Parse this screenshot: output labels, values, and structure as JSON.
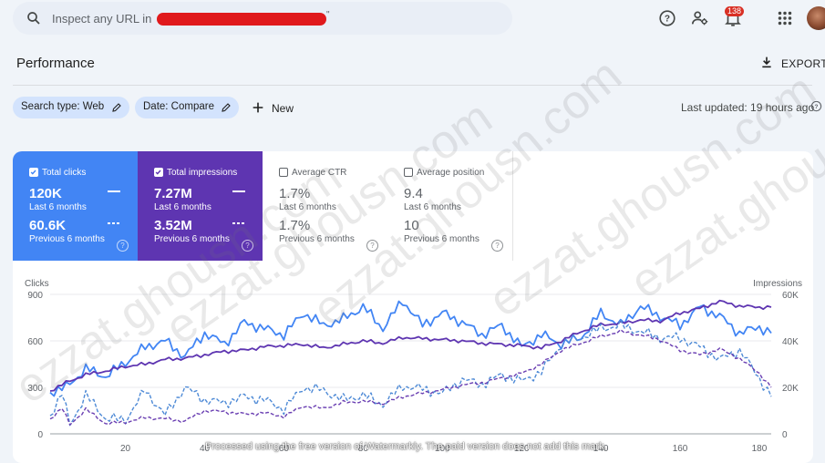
{
  "search": {
    "placeholder": "Inspect any URL in",
    "suffix": "\""
  },
  "header": {
    "notifications_count": "138"
  },
  "page": {
    "title": "Performance",
    "export_label": "EXPORT"
  },
  "filters": {
    "search_type": "Search type: Web",
    "date": "Date: Compare",
    "new_label": "New",
    "last_updated": "Last updated: 19 hours ago"
  },
  "metrics": {
    "clicks": {
      "label": "Total clicks",
      "current": "120K",
      "current_period": "Last 6 months",
      "previous": "60.6K",
      "previous_period": "Previous 6 months",
      "checked": true
    },
    "impressions": {
      "label": "Total impressions",
      "current": "7.27M",
      "current_period": "Last 6 months",
      "previous": "3.52M",
      "previous_period": "Previous 6 months",
      "checked": true
    },
    "ctr": {
      "label": "Average CTR",
      "current": "1.7%",
      "current_period": "Last 6 months",
      "previous": "1.7%",
      "previous_period": "Previous 6 months",
      "checked": false
    },
    "position": {
      "label": "Average position",
      "current": "9.4",
      "current_period": "Last 6 months",
      "previous": "10",
      "previous_period": "Previous 6 months",
      "checked": false
    }
  },
  "colors": {
    "clicks": "#4285f4",
    "impressions": "#5e35b1",
    "clicks_prev": "#4e8ad6",
    "impressions_prev": "#6a3fb2"
  },
  "watermarks": [
    "ezzat.ghousn.com",
    "ezzat.ghousn.com",
    "ezzat.ghousn.com",
    "ezzat.ghousn.com",
    "ezzat.ghousn.com"
  ],
  "footer_note": "Processed using the free version of Watermarkly. The paid version does not add this mark.",
  "chart_data": {
    "type": "line",
    "ylabel_left": "Clicks",
    "ylabel_right": "Impressions",
    "y_left_ticks": [
      "0",
      "300",
      "600",
      "900"
    ],
    "y_right_ticks": [
      "0",
      "20K",
      "40K",
      "60K"
    ],
    "ylim_left": [
      0,
      900
    ],
    "ylim_right": [
      0,
      60000
    ],
    "x_ticks": [
      "20",
      "40",
      "60",
      "80",
      "100",
      "120",
      "140",
      "160",
      "180"
    ],
    "x_tick_values": [
      20,
      40,
      60,
      80,
      100,
      120,
      140,
      160,
      180
    ],
    "xlim": [
      1,
      183
    ],
    "series": [
      {
        "name": "Total clicks",
        "period": "Last 6 months",
        "axis": "left",
        "style": "solid",
        "color": "#4285f4",
        "values": [
          [
            1,
            270
          ],
          [
            5,
            300
          ],
          [
            10,
            420
          ],
          [
            15,
            370
          ],
          [
            20,
            460
          ],
          [
            25,
            560
          ],
          [
            30,
            600
          ],
          [
            35,
            500
          ],
          [
            40,
            650
          ],
          [
            45,
            580
          ],
          [
            50,
            720
          ],
          [
            55,
            680
          ],
          [
            60,
            640
          ],
          [
            65,
            780
          ],
          [
            70,
            700
          ],
          [
            75,
            740
          ],
          [
            80,
            820
          ],
          [
            85,
            680
          ],
          [
            90,
            860
          ],
          [
            95,
            700
          ],
          [
            100,
            780
          ],
          [
            105,
            720
          ],
          [
            110,
            640
          ],
          [
            115,
            700
          ],
          [
            120,
            560
          ],
          [
            125,
            640
          ],
          [
            130,
            580
          ],
          [
            135,
            620
          ],
          [
            140,
            780
          ],
          [
            145,
            700
          ],
          [
            150,
            820
          ],
          [
            155,
            760
          ],
          [
            160,
            700
          ],
          [
            165,
            820
          ],
          [
            170,
            760
          ],
          [
            175,
            650
          ],
          [
            180,
            690
          ],
          [
            183,
            650
          ]
        ]
      },
      {
        "name": "Total impressions",
        "period": "Last 6 months",
        "axis": "right",
        "style": "solid",
        "color": "#5e35b1",
        "values": [
          [
            1,
            18500
          ],
          [
            5,
            22000
          ],
          [
            10,
            25500
          ],
          [
            15,
            27000
          ],
          [
            20,
            29000
          ],
          [
            25,
            30000
          ],
          [
            30,
            32000
          ],
          [
            35,
            32500
          ],
          [
            40,
            34000
          ],
          [
            45,
            35500
          ],
          [
            50,
            36000
          ],
          [
            55,
            37500
          ],
          [
            60,
            38000
          ],
          [
            65,
            38500
          ],
          [
            70,
            37000
          ],
          [
            75,
            38500
          ],
          [
            80,
            40000
          ],
          [
            85,
            39000
          ],
          [
            90,
            41500
          ],
          [
            95,
            41000
          ],
          [
            100,
            40500
          ],
          [
            105,
            40000
          ],
          [
            110,
            39000
          ],
          [
            115,
            38500
          ],
          [
            120,
            38000
          ],
          [
            125,
            37000
          ],
          [
            130,
            40000
          ],
          [
            135,
            44000
          ],
          [
            140,
            47000
          ],
          [
            145,
            47500
          ],
          [
            150,
            49000
          ],
          [
            155,
            48500
          ],
          [
            160,
            52000
          ],
          [
            165,
            54000
          ],
          [
            170,
            57000
          ],
          [
            175,
            55000
          ],
          [
            180,
            54500
          ],
          [
            183,
            54500
          ]
        ]
      },
      {
        "name": "Total clicks",
        "period": "Previous 6 months",
        "axis": "left",
        "style": "dashed",
        "color": "#4e8ad6",
        "values": [
          [
            1,
            120
          ],
          [
            4,
            260
          ],
          [
            6,
            60
          ],
          [
            10,
            250
          ],
          [
            15,
            100
          ],
          [
            20,
            90
          ],
          [
            25,
            280
          ],
          [
            30,
            120
          ],
          [
            35,
            300
          ],
          [
            40,
            220
          ],
          [
            45,
            200
          ],
          [
            50,
            240
          ],
          [
            55,
            220
          ],
          [
            60,
            160
          ],
          [
            65,
            300
          ],
          [
            70,
            280
          ],
          [
            75,
            220
          ],
          [
            80,
            250
          ],
          [
            85,
            190
          ],
          [
            90,
            310
          ],
          [
            95,
            290
          ],
          [
            100,
            260
          ],
          [
            105,
            350
          ],
          [
            110,
            320
          ],
          [
            115,
            380
          ],
          [
            120,
            340
          ],
          [
            125,
            400
          ],
          [
            130,
            580
          ],
          [
            135,
            620
          ],
          [
            140,
            680
          ],
          [
            145,
            700
          ],
          [
            150,
            660
          ],
          [
            155,
            620
          ],
          [
            160,
            620
          ],
          [
            165,
            560
          ],
          [
            170,
            480
          ],
          [
            175,
            540
          ],
          [
            180,
            360
          ],
          [
            183,
            240
          ]
        ]
      },
      {
        "name": "Total impressions",
        "period": "Previous 6 months",
        "axis": "right",
        "style": "dashed",
        "color": "#6a3fb2",
        "values": [
          [
            1,
            6500
          ],
          [
            4,
            11000
          ],
          [
            6,
            4000
          ],
          [
            10,
            10500
          ],
          [
            15,
            4500
          ],
          [
            20,
            5000
          ],
          [
            25,
            7000
          ],
          [
            30,
            6500
          ],
          [
            35,
            5500
          ],
          [
            40,
            10000
          ],
          [
            45,
            9500
          ],
          [
            50,
            8500
          ],
          [
            55,
            9000
          ],
          [
            60,
            7500
          ],
          [
            65,
            12000
          ],
          [
            70,
            11000
          ],
          [
            75,
            13500
          ],
          [
            80,
            14000
          ],
          [
            85,
            13000
          ],
          [
            90,
            16000
          ],
          [
            95,
            17500
          ],
          [
            100,
            19000
          ],
          [
            105,
            21000
          ],
          [
            110,
            22000
          ],
          [
            115,
            24000
          ],
          [
            120,
            26000
          ],
          [
            125,
            30000
          ],
          [
            130,
            36000
          ],
          [
            135,
            39000
          ],
          [
            140,
            42000
          ],
          [
            145,
            44000
          ],
          [
            150,
            42500
          ],
          [
            155,
            40500
          ],
          [
            160,
            36000
          ],
          [
            165,
            34000
          ],
          [
            170,
            36500
          ],
          [
            175,
            32500
          ],
          [
            180,
            26000
          ],
          [
            183,
            20000
          ]
        ]
      }
    ],
    "grid": true,
    "legend": "none"
  }
}
